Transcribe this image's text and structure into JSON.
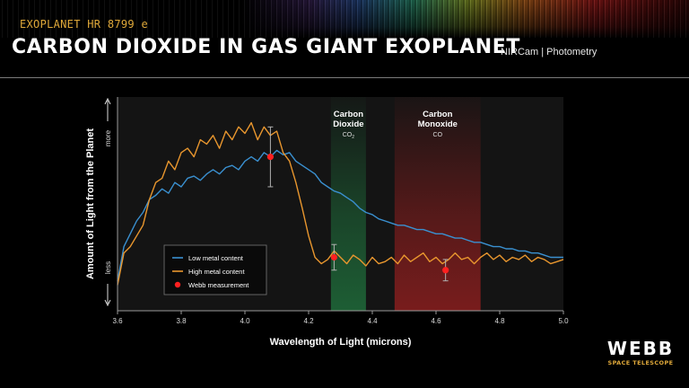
{
  "header": {
    "subtitle": "EXOPLANET HR 8799 e",
    "title": "CARBON DIOXIDE IN GAS GIANT EXOPLANET",
    "instrument": "NIRCam | Photometry"
  },
  "logo": {
    "word": "WEBB",
    "sub": "SPACE TELESCOPE"
  },
  "chart_data": {
    "type": "line",
    "xlabel": "Wavelength of Light (microns)",
    "ylabel": "Amount of Light from the Planet",
    "ylabel_more": "more",
    "ylabel_less": "less",
    "xlim": [
      3.6,
      5.0
    ],
    "ylim": [
      0,
      1
    ],
    "xticks": [
      "3.6",
      "3.8",
      "4.0",
      "4.2",
      "4.4",
      "4.6",
      "4.8",
      "5.0"
    ],
    "grid": false,
    "legend_position": "bottom-left",
    "bands": [
      {
        "label": "Carbon\nDioxide",
        "formula": "CO",
        "subscript": "2",
        "x0": 4.27,
        "x1": 4.38,
        "color": "#1f6b3a"
      },
      {
        "label": "Carbon\nMonoxide",
        "formula": "CO",
        "subscript": "",
        "x0": 4.47,
        "x1": 4.74,
        "color": "#8a1e1e"
      }
    ],
    "series": [
      {
        "name": "Low metal content",
        "color": "#3a90d0",
        "x": [
          3.6,
          3.62,
          3.64,
          3.66,
          3.68,
          3.7,
          3.72,
          3.74,
          3.76,
          3.78,
          3.8,
          3.82,
          3.84,
          3.86,
          3.88,
          3.9,
          3.92,
          3.94,
          3.96,
          3.98,
          4.0,
          4.02,
          4.04,
          4.06,
          4.08,
          4.1,
          4.12,
          4.14,
          4.16,
          4.18,
          4.2,
          4.22,
          4.24,
          4.26,
          4.28,
          4.3,
          4.32,
          4.34,
          4.36,
          4.38,
          4.4,
          4.42,
          4.44,
          4.46,
          4.48,
          4.5,
          4.52,
          4.54,
          4.56,
          4.58,
          4.6,
          4.62,
          4.64,
          4.66,
          4.68,
          4.7,
          4.72,
          4.74,
          4.76,
          4.78,
          4.8,
          4.82,
          4.84,
          4.86,
          4.88,
          4.9,
          4.92,
          4.94,
          4.96,
          4.98,
          5.0
        ],
        "values": [
          0.14,
          0.3,
          0.36,
          0.42,
          0.46,
          0.52,
          0.54,
          0.57,
          0.55,
          0.6,
          0.58,
          0.62,
          0.63,
          0.61,
          0.64,
          0.66,
          0.64,
          0.67,
          0.68,
          0.66,
          0.7,
          0.72,
          0.7,
          0.74,
          0.72,
          0.75,
          0.73,
          0.74,
          0.7,
          0.68,
          0.66,
          0.64,
          0.6,
          0.58,
          0.56,
          0.55,
          0.53,
          0.51,
          0.48,
          0.46,
          0.45,
          0.43,
          0.42,
          0.41,
          0.4,
          0.4,
          0.39,
          0.38,
          0.38,
          0.37,
          0.36,
          0.36,
          0.35,
          0.34,
          0.34,
          0.33,
          0.32,
          0.32,
          0.31,
          0.3,
          0.3,
          0.29,
          0.29,
          0.28,
          0.28,
          0.27,
          0.27,
          0.26,
          0.25,
          0.25,
          0.25
        ]
      },
      {
        "name": "High metal content",
        "color": "#e8962e",
        "x": [
          3.6,
          3.62,
          3.64,
          3.66,
          3.68,
          3.7,
          3.72,
          3.74,
          3.76,
          3.78,
          3.8,
          3.82,
          3.84,
          3.86,
          3.88,
          3.9,
          3.92,
          3.94,
          3.96,
          3.98,
          4.0,
          4.02,
          4.04,
          4.06,
          4.08,
          4.1,
          4.12,
          4.14,
          4.16,
          4.18,
          4.2,
          4.22,
          4.24,
          4.26,
          4.28,
          4.3,
          4.32,
          4.34,
          4.36,
          4.38,
          4.4,
          4.42,
          4.44,
          4.46,
          4.48,
          4.5,
          4.52,
          4.54,
          4.56,
          4.58,
          4.6,
          4.62,
          4.64,
          4.66,
          4.68,
          4.7,
          4.72,
          4.74,
          4.76,
          4.78,
          4.8,
          4.82,
          4.84,
          4.86,
          4.88,
          4.9,
          4.92,
          4.94,
          4.96,
          4.98,
          5.0
        ],
        "values": [
          0.12,
          0.27,
          0.3,
          0.35,
          0.4,
          0.52,
          0.6,
          0.62,
          0.7,
          0.66,
          0.74,
          0.76,
          0.72,
          0.8,
          0.78,
          0.82,
          0.76,
          0.84,
          0.8,
          0.86,
          0.83,
          0.88,
          0.8,
          0.86,
          0.82,
          0.84,
          0.74,
          0.7,
          0.6,
          0.48,
          0.35,
          0.25,
          0.22,
          0.24,
          0.28,
          0.25,
          0.22,
          0.26,
          0.24,
          0.21,
          0.25,
          0.22,
          0.23,
          0.25,
          0.22,
          0.26,
          0.23,
          0.25,
          0.27,
          0.23,
          0.25,
          0.22,
          0.24,
          0.27,
          0.24,
          0.25,
          0.22,
          0.25,
          0.27,
          0.24,
          0.26,
          0.23,
          0.25,
          0.24,
          0.26,
          0.23,
          0.25,
          0.24,
          0.22,
          0.23,
          0.24
        ]
      }
    ],
    "measurements": {
      "name": "Webb measurement",
      "color": "#ff2020",
      "points": [
        {
          "x": 4.08,
          "y": 0.72,
          "err": 0.14
        },
        {
          "x": 4.28,
          "y": 0.25,
          "err": 0.06
        },
        {
          "x": 4.63,
          "y": 0.19,
          "err": 0.05
        }
      ]
    }
  }
}
